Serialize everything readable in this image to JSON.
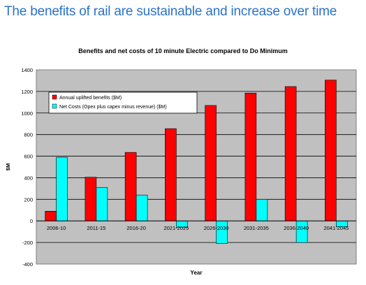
{
  "slide": {
    "title": "The benefits of rail are sustainable and increase over time"
  },
  "colors": {
    "benefits": "#ff0000",
    "net_costs": "#00ffff",
    "plot_background": "#c0c0c0",
    "title": "#2b72c8"
  },
  "chart_data": {
    "type": "bar",
    "title": "Benefits and net costs of 10 minute Electric compared to Do Minimum",
    "xlabel": "Year",
    "ylabel": "$M",
    "ylim": [
      -400,
      1400
    ],
    "yticks": [
      -400,
      -200,
      0,
      200,
      400,
      600,
      800,
      1000,
      1200,
      1400
    ],
    "grid": true,
    "legend_position": "top-left",
    "categories": [
      "2006-10",
      "2011-15",
      "2016-20",
      "2021-2025",
      "2026-2030",
      "2031-2035",
      "2036-2040",
      "2041-2045"
    ],
    "series": [
      {
        "name": "Annual uplifted benefits ($M)",
        "values": [
          90,
          405,
          635,
          855,
          1070,
          1185,
          1245,
          1305
        ]
      },
      {
        "name": "Net Costs (Opex plus capex minus revenue)  ($M)",
        "values": [
          590,
          310,
          240,
          -60,
          -210,
          200,
          -200,
          -55
        ]
      }
    ]
  }
}
